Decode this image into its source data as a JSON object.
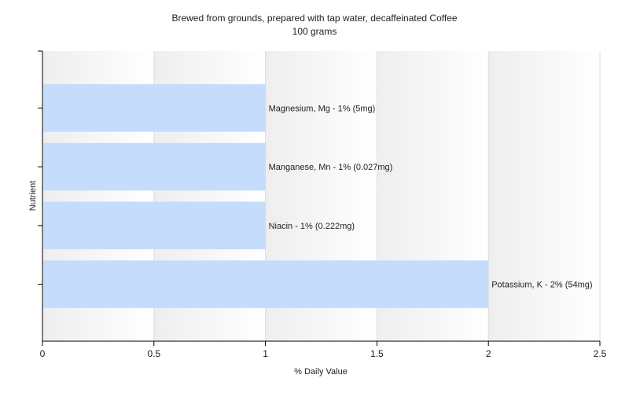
{
  "chart_data": {
    "type": "bar",
    "orientation": "horizontal",
    "title": "Brewed from grounds, prepared with tap water, decaffeinated Coffee",
    "subtitle": "100 grams",
    "xlabel": "% Daily Value",
    "ylabel": "Nutrient",
    "xlim": [
      0,
      2.5
    ],
    "xticks": [
      "0",
      "0.5",
      "1",
      "1.5",
      "2",
      "2.5"
    ],
    "grid": true,
    "bar_color": "#c6dcfc",
    "categories": [
      "Magnesium, Mg",
      "Manganese, Mn",
      "Niacin",
      "Potassium, K"
    ],
    "values": [
      1,
      1,
      1,
      2
    ],
    "data_labels": [
      "Magnesium, Mg - 1% (5mg)",
      "Manganese, Mn - 1% (0.027mg)",
      "Niacin - 1% (0.222mg)",
      "Potassium, K - 2% (54mg)"
    ]
  }
}
